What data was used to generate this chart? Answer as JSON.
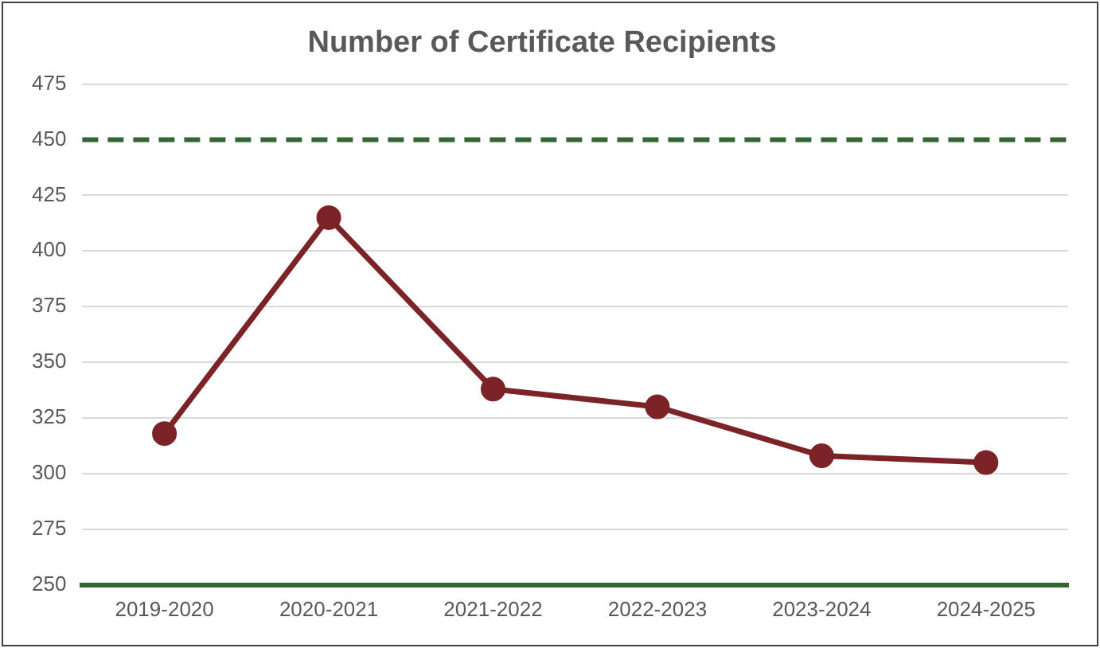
{
  "chart_data": {
    "type": "line",
    "title": "Number of Certificate Recipients",
    "categories": [
      "2019-2020",
      "2020-2021",
      "2021-2022",
      "2022-2023",
      "2023-2024",
      "2024-2025"
    ],
    "series": [
      {
        "color": "#7b2326",
        "values": [
          318,
          415,
          338,
          330,
          308,
          305
        ]
      }
    ],
    "ylim": [
      250,
      475
    ],
    "yticks": [
      250,
      275,
      300,
      325,
      350,
      375,
      400,
      425,
      450,
      475
    ],
    "grid": "y",
    "legend": false,
    "marker": "circle",
    "line_style": "solid",
    "ref_lines": [
      {
        "axis": "y",
        "value": 450,
        "color": "#336633",
        "line_style": "dashed"
      }
    ]
  }
}
